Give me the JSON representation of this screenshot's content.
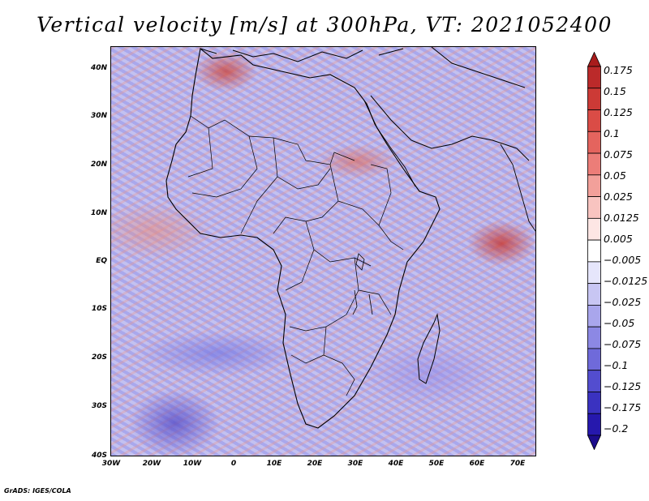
{
  "title": "Vertical velocity [m/s] at 300hPa, VT: 2021052400",
  "credit": "GrADS: IGES/COLA",
  "map": {
    "lat_labels": [
      "40N",
      "30N",
      "20N",
      "10N",
      "EQ",
      "10S",
      "20S",
      "30S",
      "40S"
    ],
    "lon_labels": [
      "30W",
      "20W",
      "10W",
      "0",
      "10E",
      "20E",
      "30E",
      "40E",
      "50E",
      "60E",
      "70E"
    ]
  },
  "colorbar": {
    "levels": [
      "0.175",
      "0.15",
      "0.125",
      "0.1",
      "0.075",
      "0.05",
      "0.025",
      "0.0125",
      "0.005",
      "−0.005",
      "−0.0125",
      "−0.025",
      "−0.05",
      "−0.075",
      "−0.1",
      "−0.125",
      "−0.175",
      "−0.2"
    ],
    "colors": [
      "#a81c1c",
      "#bb2a2a",
      "#cc3a36",
      "#da4c46",
      "#e4645e",
      "#ec7d78",
      "#f2a09a",
      "#f8c4c0",
      "#fde6e4",
      "#ffffff",
      "#e6e6fb",
      "#c8c6f3",
      "#a9a6ec",
      "#8c88e4",
      "#6f6ada",
      "#534dcf",
      "#3a32c0",
      "#2618ad",
      "#1c0c8c"
    ],
    "top_arrow_color": "#a81c1c",
    "bottom_arrow_color": "#1c0c8c"
  }
}
